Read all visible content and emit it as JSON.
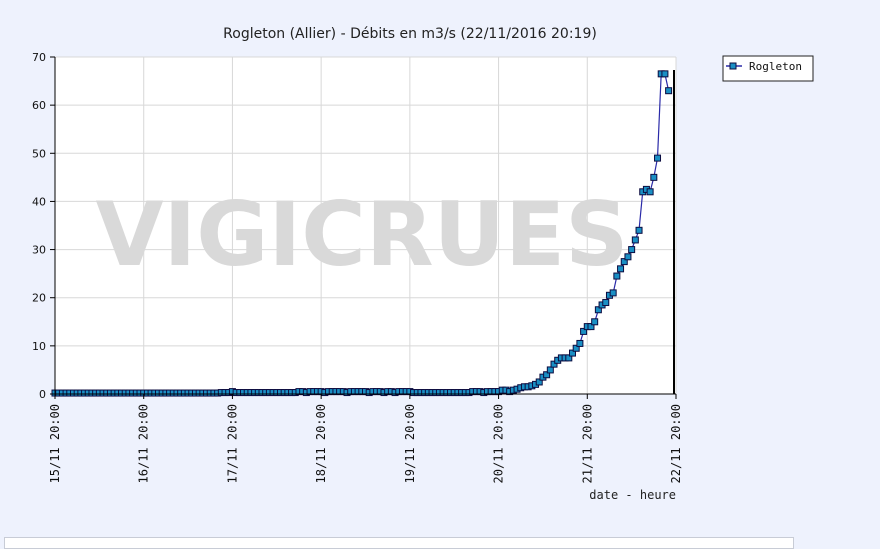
{
  "colors": {
    "page_background": "#eef2fd",
    "plot_background": "#ffffff",
    "grid": "#d8d8d8",
    "series_line": "#2a2aa8",
    "marker_fill": "#1a8fc4",
    "marker_stroke": "#0c0c40",
    "watermark": "#d9d9d9"
  },
  "watermark_text": "VIGICRUES",
  "chart_data": {
    "type": "line",
    "title": "Rogleton (Allier) - Débits en m3/s (22/11/2016 20:19)",
    "xlabel": "date - heure",
    "ylabel": "",
    "ylim": [
      0,
      70
    ],
    "y_ticks": [
      "0",
      "10",
      "20",
      "30",
      "40",
      "50",
      "60",
      "70"
    ],
    "x_range_hours": [
      0,
      168
    ],
    "x_ticks": [
      {
        "hours": 0,
        "label": "15/11 20:00"
      },
      {
        "hours": 24,
        "label": "16/11 20:00"
      },
      {
        "hours": 48,
        "label": "17/11 20:00"
      },
      {
        "hours": 72,
        "label": "18/11 20:00"
      },
      {
        "hours": 96,
        "label": "19/11 20:00"
      },
      {
        "hours": 120,
        "label": "20/11 20:00"
      },
      {
        "hours": 144,
        "label": "21/11 20:00"
      },
      {
        "hours": 168,
        "label": "22/11 20:00"
      }
    ],
    "grid": true,
    "legend_position": "top-right",
    "series": [
      {
        "name": "Rogleton",
        "points": [
          [
            0,
            0.2
          ],
          [
            1,
            0.2
          ],
          [
            2,
            0.2
          ],
          [
            3,
            0.2
          ],
          [
            4,
            0.2
          ],
          [
            5,
            0.2
          ],
          [
            6,
            0.2
          ],
          [
            7,
            0.2
          ],
          [
            8,
            0.2
          ],
          [
            9,
            0.2
          ],
          [
            10,
            0.2
          ],
          [
            11,
            0.2
          ],
          [
            12,
            0.2
          ],
          [
            13,
            0.2
          ],
          [
            14,
            0.2
          ],
          [
            15,
            0.2
          ],
          [
            16,
            0.2
          ],
          [
            17,
            0.2
          ],
          [
            18,
            0.2
          ],
          [
            19,
            0.2
          ],
          [
            20,
            0.2
          ],
          [
            21,
            0.2
          ],
          [
            22,
            0.2
          ],
          [
            23,
            0.2
          ],
          [
            24,
            0.2
          ],
          [
            25,
            0.2
          ],
          [
            26,
            0.2
          ],
          [
            27,
            0.2
          ],
          [
            28,
            0.2
          ],
          [
            29,
            0.2
          ],
          [
            30,
            0.2
          ],
          [
            31,
            0.2
          ],
          [
            32,
            0.2
          ],
          [
            33,
            0.2
          ],
          [
            34,
            0.2
          ],
          [
            35,
            0.2
          ],
          [
            36,
            0.2
          ],
          [
            37,
            0.2
          ],
          [
            38,
            0.2
          ],
          [
            39,
            0.2
          ],
          [
            40,
            0.2
          ],
          [
            41,
            0.2
          ],
          [
            42,
            0.2
          ],
          [
            43,
            0.2
          ],
          [
            44,
            0.2
          ],
          [
            45,
            0.3
          ],
          [
            46,
            0.3
          ],
          [
            47,
            0.3
          ],
          [
            48,
            0.5
          ],
          [
            49,
            0.3
          ],
          [
            50,
            0.3
          ],
          [
            51,
            0.3
          ],
          [
            52,
            0.3
          ],
          [
            53,
            0.3
          ],
          [
            54,
            0.3
          ],
          [
            55,
            0.3
          ],
          [
            56,
            0.3
          ],
          [
            57,
            0.3
          ],
          [
            58,
            0.3
          ],
          [
            59,
            0.3
          ],
          [
            60,
            0.3
          ],
          [
            61,
            0.3
          ],
          [
            62,
            0.3
          ],
          [
            63,
            0.3
          ],
          [
            64,
            0.3
          ],
          [
            65,
            0.3
          ],
          [
            66,
            0.5
          ],
          [
            67,
            0.5
          ],
          [
            68,
            0.3
          ],
          [
            69,
            0.5
          ],
          [
            70,
            0.5
          ],
          [
            71,
            0.5
          ],
          [
            72,
            0.5
          ],
          [
            73,
            0.3
          ],
          [
            74,
            0.5
          ],
          [
            75,
            0.5
          ],
          [
            76,
            0.5
          ],
          [
            77,
            0.5
          ],
          [
            78,
            0.5
          ],
          [
            79,
            0.3
          ],
          [
            80,
            0.5
          ],
          [
            81,
            0.5
          ],
          [
            82,
            0.5
          ],
          [
            83,
            0.5
          ],
          [
            84,
            0.5
          ],
          [
            85,
            0.3
          ],
          [
            86,
            0.5
          ],
          [
            87,
            0.5
          ],
          [
            88,
            0.5
          ],
          [
            89,
            0.3
          ],
          [
            90,
            0.5
          ],
          [
            91,
            0.5
          ],
          [
            92,
            0.3
          ],
          [
            93,
            0.5
          ],
          [
            94,
            0.5
          ],
          [
            95,
            0.5
          ],
          [
            96,
            0.5
          ],
          [
            97,
            0.3
          ],
          [
            98,
            0.3
          ],
          [
            99,
            0.3
          ],
          [
            100,
            0.3
          ],
          [
            101,
            0.3
          ],
          [
            102,
            0.3
          ],
          [
            103,
            0.3
          ],
          [
            104,
            0.3
          ],
          [
            105,
            0.3
          ],
          [
            106,
            0.3
          ],
          [
            107,
            0.3
          ],
          [
            108,
            0.3
          ],
          [
            109,
            0.3
          ],
          [
            110,
            0.3
          ],
          [
            111,
            0.3
          ],
          [
            112,
            0.3
          ],
          [
            113,
            0.5
          ],
          [
            114,
            0.5
          ],
          [
            115,
            0.5
          ],
          [
            116,
            0.3
          ],
          [
            117,
            0.5
          ],
          [
            118,
            0.5
          ],
          [
            119,
            0.5
          ],
          [
            120,
            0.5
          ],
          [
            121,
            0.8
          ],
          [
            122,
            0.8
          ],
          [
            123,
            0.5
          ],
          [
            124,
            0.8
          ],
          [
            125,
            1
          ],
          [
            126,
            1.3
          ],
          [
            127,
            1.5
          ],
          [
            128,
            1.5
          ],
          [
            129,
            1.7
          ],
          [
            130,
            2
          ],
          [
            131,
            2.5
          ],
          [
            132,
            3.5
          ],
          [
            133,
            4
          ],
          [
            134,
            5
          ],
          [
            135,
            6.2
          ],
          [
            136,
            7
          ],
          [
            137,
            7.5
          ],
          [
            138,
            7.5
          ],
          [
            139,
            7.5
          ],
          [
            140,
            8.5
          ],
          [
            141,
            9.5
          ],
          [
            142,
            10.5
          ],
          [
            143,
            13
          ],
          [
            144,
            14
          ],
          [
            145,
            14
          ],
          [
            146,
            15
          ],
          [
            147,
            17.5
          ],
          [
            148,
            18.5
          ],
          [
            149,
            19
          ],
          [
            150,
            20.5
          ],
          [
            151,
            21
          ],
          [
            152,
            24.5
          ],
          [
            153,
            26
          ],
          [
            154,
            27.5
          ],
          [
            155,
            28.5
          ],
          [
            156,
            30
          ],
          [
            157,
            32
          ],
          [
            158,
            34
          ],
          [
            159,
            42
          ],
          [
            160,
            42.5
          ],
          [
            161,
            42
          ],
          [
            162,
            45
          ],
          [
            163,
            49
          ],
          [
            164,
            66.5
          ],
          [
            165,
            66.5
          ],
          [
            166,
            63
          ]
        ]
      }
    ]
  }
}
